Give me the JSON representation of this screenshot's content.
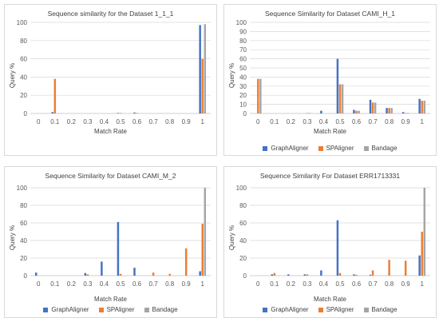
{
  "colors": {
    "GraphAligner": "#4472c4",
    "SPAligner": "#ed7d31",
    "Bandage": "#a5a5a5",
    "grid": "#d9d9d9",
    "axis_text": "#595959"
  },
  "legend": [
    "GraphAligner",
    "SPAligner",
    "Bandage"
  ],
  "chart_data": [
    {
      "type": "bar",
      "title": "Sequence similarity for the Dataset 1_1_1",
      "xlabel": "Match Rate",
      "ylabel": "Query %",
      "ylim": [
        0,
        100
      ],
      "yticks": [
        0,
        20,
        40,
        60,
        80,
        100
      ],
      "categories": [
        "0",
        "0.1",
        "0.2",
        "0.3",
        "0.4",
        "0.5",
        "0.6",
        "0.7",
        "0.8",
        "0.9",
        "1"
      ],
      "grid": true,
      "legend_position": "none",
      "series": [
        {
          "name": "GraphAligner",
          "values": [
            0,
            1.5,
            0,
            0,
            0,
            0.5,
            1,
            0,
            0,
            0,
            97
          ]
        },
        {
          "name": "SPAligner",
          "values": [
            0,
            38,
            0,
            0,
            0,
            0.5,
            0.5,
            0,
            0,
            0,
            60
          ]
        },
        {
          "name": "Bandage",
          "values": [
            0,
            0,
            0,
            0,
            0,
            0,
            0,
            0,
            0,
            0,
            98
          ]
        }
      ]
    },
    {
      "type": "bar",
      "title": "Sequence Similarity for Dataset CAMI_H_1",
      "xlabel": "Match Rate",
      "ylabel": "Query %",
      "ylim": [
        0,
        100
      ],
      "yticks": [
        0,
        10,
        20,
        30,
        40,
        50,
        60,
        70,
        80,
        90,
        100
      ],
      "categories": [
        "0",
        "0.1",
        "0.2",
        "0.3",
        "0.4",
        "0.5",
        "0.6",
        "0.7",
        "0.8",
        "0.9",
        "1"
      ],
      "grid": true,
      "legend_position": "bottom",
      "series": [
        {
          "name": "GraphAligner",
          "values": [
            0,
            0,
            0,
            0,
            3,
            60,
            4,
            15,
            6,
            1.5,
            16
          ]
        },
        {
          "name": "SPAligner",
          "values": [
            38,
            0,
            0,
            0.5,
            0,
            32,
            3,
            12,
            6,
            0.5,
            14
          ]
        },
        {
          "name": "Bandage",
          "values": [
            38,
            0,
            0,
            0.5,
            0,
            32,
            3,
            12,
            6,
            0.5,
            14
          ]
        }
      ]
    },
    {
      "type": "bar",
      "title": "Sequence Similarity for Dataset CAMI_M_2",
      "xlabel": "Match Rate",
      "ylabel": "Query %",
      "ylim": [
        0,
        100
      ],
      "yticks": [
        0,
        20,
        40,
        60,
        80,
        100
      ],
      "categories": [
        "0",
        "0.1",
        "0.2",
        "0.3",
        "0.4",
        "0.5",
        "0.6",
        "0.7",
        "0.8",
        "0.9",
        "1"
      ],
      "grid": true,
      "legend_position": "bottom",
      "series": [
        {
          "name": "GraphAligner",
          "values": [
            3.5,
            0,
            0,
            3,
            16,
            61,
            9,
            0,
            0,
            0,
            5
          ]
        },
        {
          "name": "SPAligner",
          "values": [
            0,
            0,
            0,
            1.5,
            0,
            2,
            0,
            3.5,
            2,
            31,
            59
          ]
        },
        {
          "name": "Bandage",
          "values": [
            0,
            0,
            0,
            0,
            0,
            0,
            0,
            0,
            0,
            0,
            100
          ]
        }
      ]
    },
    {
      "type": "bar",
      "title": "Sequence Similarity For Dataset ERR1713331",
      "xlabel": "Match Rate",
      "ylabel": "Query %",
      "ylim": [
        0,
        100
      ],
      "yticks": [
        0,
        20,
        40,
        60,
        80,
        100
      ],
      "categories": [
        "0",
        "0.1",
        "0.2",
        "0.3",
        "0.4",
        "0.5",
        "0.6",
        "0.7",
        "0.8",
        "0.9",
        "1"
      ],
      "grid": true,
      "legend_position": "bottom",
      "series": [
        {
          "name": "GraphAligner",
          "values": [
            0,
            1.5,
            1.5,
            1.5,
            6,
            63,
            1.5,
            1,
            0,
            0,
            23
          ]
        },
        {
          "name": "SPAligner",
          "values": [
            0,
            3,
            0,
            1.5,
            0,
            3,
            1,
            6,
            18,
            17,
            50
          ]
        },
        {
          "name": "Bandage",
          "values": [
            0,
            0,
            0,
            0,
            0,
            0,
            0,
            0,
            0,
            0,
            100
          ]
        }
      ]
    }
  ]
}
